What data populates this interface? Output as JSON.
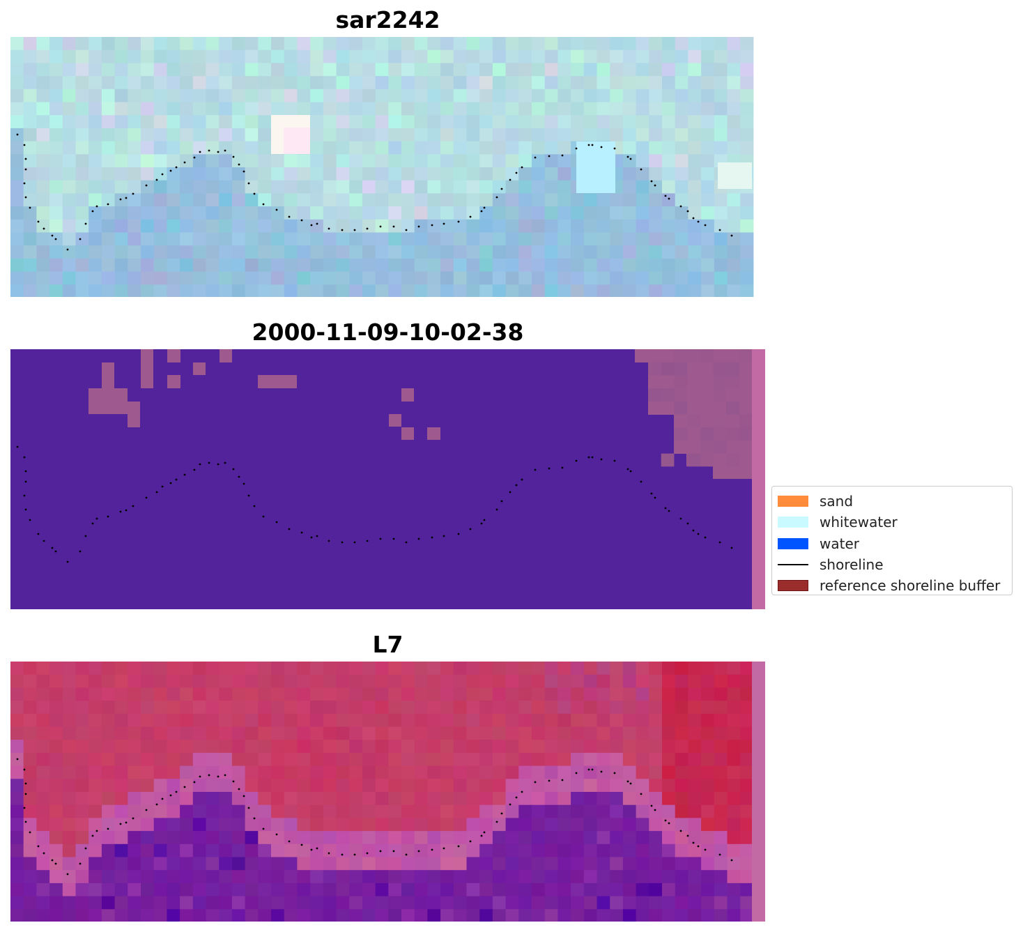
{
  "panels": [
    {
      "title": "sar2242",
      "kind": "sar"
    },
    {
      "title": "2000-11-09-10-02-38",
      "kind": "classification"
    },
    {
      "title": "L7",
      "kind": "mndwi"
    }
  ],
  "legend": {
    "items": [
      {
        "label": "sand",
        "color": "#ff8c3a",
        "style": "patch"
      },
      {
        "label": "whitewater",
        "color": "#c8faff",
        "style": "patch"
      },
      {
        "label": "water",
        "color": "#0055ff",
        "style": "patch"
      },
      {
        "label": "shoreline",
        "color": "#000000",
        "style": "line"
      },
      {
        "label": "reference shoreline buffer",
        "color": "#9b2c2c",
        "edge": "#6e1616",
        "style": "patch"
      }
    ]
  },
  "colors": {
    "classification_water": "#52239a",
    "classification_land": "#9e5a8e",
    "buffer_strip": "#c16aa3",
    "sar_base": "#9cc8df",
    "mndwi_land": "#c43a66",
    "mndwi_water": "#7a219e"
  },
  "shoreline": {
    "points": [
      [
        10,
        140
      ],
      [
        20,
        155
      ],
      [
        22,
        175
      ],
      [
        22,
        190
      ],
      [
        20,
        210
      ],
      [
        22,
        230
      ],
      [
        28,
        245
      ],
      [
        40,
        265
      ],
      [
        48,
        275
      ],
      [
        60,
        285
      ],
      [
        65,
        290
      ],
      [
        82,
        305
      ],
      [
        100,
        290
      ],
      [
        108,
        268
      ],
      [
        118,
        250
      ],
      [
        124,
        243
      ],
      [
        140,
        240
      ],
      [
        158,
        233
      ],
      [
        166,
        231
      ],
      [
        176,
        225
      ],
      [
        195,
        213
      ],
      [
        210,
        205
      ],
      [
        218,
        197
      ],
      [
        230,
        192
      ],
      [
        238,
        187
      ],
      [
        250,
        180
      ],
      [
        264,
        173
      ],
      [
        272,
        165
      ],
      [
        285,
        163
      ],
      [
        298,
        165
      ],
      [
        308,
        163
      ],
      [
        320,
        172
      ],
      [
        328,
        183
      ],
      [
        335,
        193
      ],
      [
        342,
        210
      ],
      [
        350,
        225
      ],
      [
        363,
        240
      ],
      [
        382,
        248
      ],
      [
        400,
        258
      ],
      [
        418,
        263
      ],
      [
        432,
        270
      ],
      [
        440,
        268
      ],
      [
        457,
        275
      ],
      [
        476,
        277
      ],
      [
        494,
        277
      ],
      [
        512,
        275
      ],
      [
        531,
        272
      ],
      [
        550,
        272
      ],
      [
        568,
        277
      ],
      [
        586,
        272
      ],
      [
        605,
        270
      ],
      [
        622,
        268
      ],
      [
        643,
        265
      ],
      [
        660,
        258
      ],
      [
        676,
        250
      ],
      [
        680,
        245
      ],
      [
        698,
        230
      ],
      [
        705,
        218
      ],
      [
        717,
        205
      ],
      [
        726,
        195
      ],
      [
        734,
        187
      ],
      [
        753,
        173
      ],
      [
        773,
        171
      ],
      [
        792,
        170
      ],
      [
        812,
        160
      ],
      [
        830,
        155
      ],
      [
        835,
        155
      ],
      [
        848,
        158
      ],
      [
        867,
        160
      ],
      [
        886,
        172
      ],
      [
        890,
        175
      ],
      [
        905,
        190
      ],
      [
        920,
        207
      ],
      [
        925,
        213
      ],
      [
        940,
        228
      ],
      [
        945,
        232
      ],
      [
        962,
        243
      ],
      [
        972,
        250
      ],
      [
        980,
        260
      ],
      [
        987,
        265
      ],
      [
        997,
        270
      ],
      [
        1018,
        277
      ],
      [
        1035,
        285
      ]
    ]
  }
}
